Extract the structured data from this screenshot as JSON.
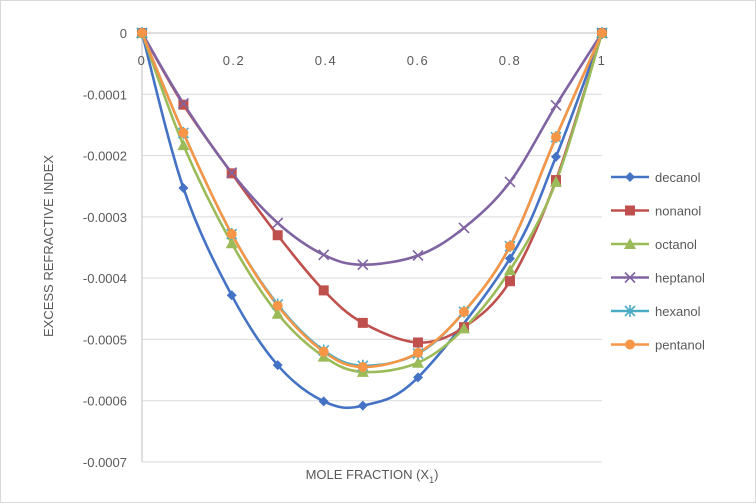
{
  "chart_data": {
    "type": "line",
    "xlabel_main": "MOLE FRACTION (X",
    "xlabel_sub": "1",
    "xlabel_close": ")",
    "ylabel": "EXCESS REFRACTIVE INDEX",
    "xlim": [
      0,
      1
    ],
    "ylim": [
      -0.0007,
      0
    ],
    "x_ticks": [
      "0",
      "0.2",
      "0.4",
      "0.6",
      "0.8",
      "1"
    ],
    "y_ticks": [
      "0",
      "-0.0001",
      "-0.0002",
      "-0.0003",
      "-0.0004",
      "-0.0005",
      "-0.0006",
      "-0.0007"
    ],
    "grid": "horizontal",
    "legend_position": "right",
    "series": [
      {
        "name": "decanol",
        "color": "#4472C4",
        "marker": "diamond",
        "x": [
          0,
          0.09,
          0.195,
          0.295,
          0.395,
          0.48,
          0.6,
          0.8,
          0.9,
          1
        ],
        "y": [
          0,
          -0.000253,
          -0.000428,
          -0.000542,
          -0.000601,
          -0.000608,
          -0.000562,
          -0.000368,
          -0.000202,
          0
        ]
      },
      {
        "name": "nonanol",
        "color": "#C0504D",
        "marker": "square",
        "x": [
          0,
          0.09,
          0.195,
          0.295,
          0.395,
          0.48,
          0.6,
          0.7,
          0.8,
          0.9,
          1
        ],
        "y": [
          0,
          -0.000117,
          -0.000229,
          -0.00033,
          -0.00042,
          -0.000473,
          -0.000505,
          -0.00048,
          -0.000405,
          -0.00024,
          0
        ]
      },
      {
        "name": "octanol",
        "color": "#9BBB59",
        "marker": "triangle",
        "x": [
          0,
          0.09,
          0.195,
          0.295,
          0.395,
          0.48,
          0.6,
          0.7,
          0.8,
          0.9,
          1
        ],
        "y": [
          0,
          -0.000183,
          -0.000343,
          -0.000458,
          -0.000528,
          -0.000553,
          -0.000538,
          -0.000482,
          -0.000387,
          -0.000243,
          0
        ]
      },
      {
        "name": "heptanol",
        "color": "#8064A2",
        "marker": "x",
        "x": [
          0,
          0.09,
          0.195,
          0.295,
          0.395,
          0.48,
          0.6,
          0.7,
          0.8,
          0.9,
          1
        ],
        "y": [
          0,
          -0.000115,
          -0.000228,
          -0.00031,
          -0.000362,
          -0.000378,
          -0.000363,
          -0.000318,
          -0.000243,
          -0.000118,
          0
        ]
      },
      {
        "name": "hexanol",
        "color": "#4BACC6",
        "marker": "star",
        "x": [
          0,
          0.09,
          0.195,
          0.295,
          0.395,
          0.48,
          0.6,
          0.7,
          0.8,
          0.9,
          1
        ],
        "y": [
          0,
          -0.000163,
          -0.000328,
          -0.000443,
          -0.000518,
          -0.000543,
          -0.000523,
          -0.000455,
          -0.000348,
          -0.00017,
          0
        ]
      },
      {
        "name": "pentanol",
        "color": "#F79646",
        "marker": "circle",
        "x": [
          0,
          0.09,
          0.195,
          0.295,
          0.395,
          0.48,
          0.6,
          0.7,
          0.8,
          0.9,
          1
        ],
        "y": [
          0,
          -0.000163,
          -0.000328,
          -0.000445,
          -0.00052,
          -0.000545,
          -0.000522,
          -0.000455,
          -0.000348,
          -0.00017,
          0
        ]
      }
    ]
  }
}
